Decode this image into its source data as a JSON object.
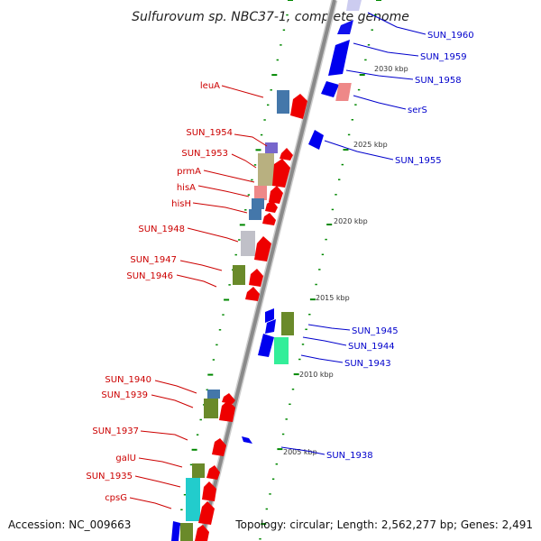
{
  "title": "Sulfurovum sp. NBC37-1, complete genome",
  "footer": {
    "accession": "Accession: NC_009663",
    "topology": "Topology: circular; Length: 2,562,277 bp; Genes: 2,491"
  },
  "colors": {
    "forward": "#ee0000",
    "reverse": "#0000ee",
    "leader_red": "#cc0000",
    "leader_blue": "#0000cc",
    "backbone": "#888888",
    "tick": "#008800"
  },
  "scale_labels": [
    "2030 kbp",
    "2025 kbp",
    "2020 kbp",
    "2015 kbp",
    "2010 kbp",
    "2005 kbp"
  ],
  "left_labels": [
    "leuA",
    "SUN_1954",
    "SUN_1953",
    "prmA",
    "hisA",
    "hisH",
    "SUN_1948",
    "SUN_1947",
    "SUN_1946",
    "SUN_1940",
    "SUN_1939",
    "SUN_1937",
    "galU",
    "SUN_1935",
    "cpsG"
  ],
  "right_labels": [
    "SUN_1960",
    "SUN_1959",
    "SUN_1958",
    "serS",
    "SUN_1955",
    "SUN_1945",
    "SUN_1944",
    "SUN_1943",
    "SUN_1938"
  ]
}
